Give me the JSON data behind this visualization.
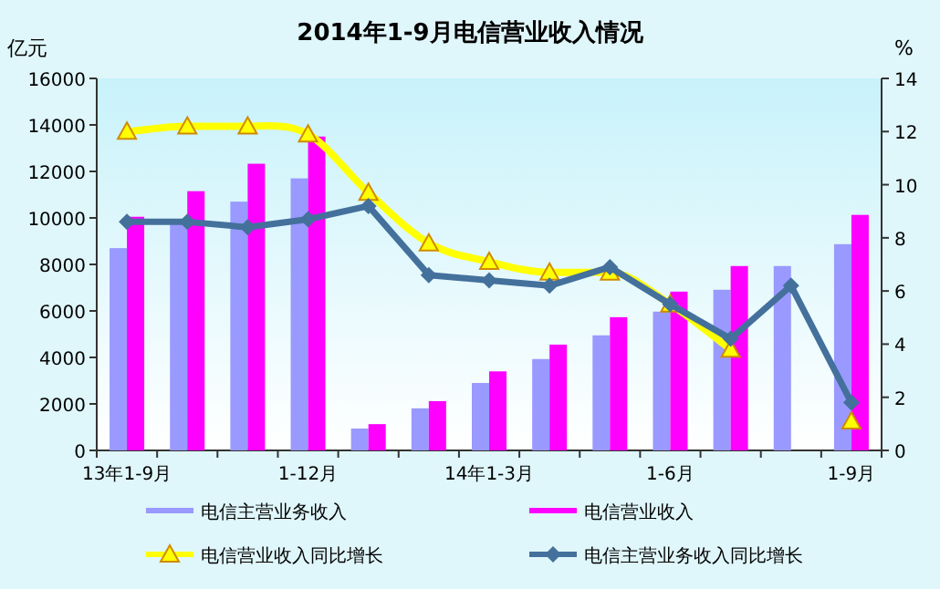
{
  "chart_data": {
    "type": "bar",
    "title": "2014年1-9月电信营业收入情况",
    "ylabel": "亿元",
    "y2label": "%",
    "categories": [
      "13年1-9月",
      null,
      null,
      "1-12月",
      null,
      null,
      "14年1-3月",
      null,
      null,
      "1-6月",
      null,
      null,
      "1-9月"
    ],
    "ylim": [
      0,
      16000
    ],
    "yticks": [
      0,
      2000,
      4000,
      6000,
      8000,
      10000,
      12000,
      14000,
      16000
    ],
    "y2lim": [
      0,
      14
    ],
    "y2ticks": [
      0,
      2,
      4,
      6,
      8,
      10,
      12,
      14
    ],
    "legend": "bottom",
    "grid": false,
    "series": [
      {
        "name": "电信主营业务收入",
        "color": "#9999ff",
        "values": [
          8700,
          9800,
          10700,
          11700,
          940,
          1810,
          2900,
          3930,
          4950,
          5970,
          6910,
          7930,
          8870
        ]
      },
      {
        "name": "电信营业收入",
        "color": "#ff00ff",
        "values": [
          10050,
          11150,
          12330,
          13500,
          1130,
          2120,
          3400,
          4550,
          5730,
          6830,
          7930,
          null,
          10130
        ]
      },
      {
        "name": "电信营业收入同比增长",
        "type": "line",
        "axis": "y2",
        "color": "#ffff00",
        "marker": "triangle",
        "values": [
          12.0,
          12.2,
          12.2,
          11.9,
          9.7,
          7.8,
          7.1,
          6.7,
          6.7,
          5.5,
          3.8,
          null,
          1.1
        ]
      },
      {
        "name": "电信主营业务收入同比增长",
        "type": "line",
        "axis": "y2",
        "color": "#44709c",
        "marker": "diamond",
        "values": [
          8.6,
          8.6,
          8.4,
          8.7,
          9.2,
          6.6,
          6.4,
          6.2,
          6.9,
          5.5,
          4.2,
          6.2,
          1.8
        ]
      }
    ]
  }
}
